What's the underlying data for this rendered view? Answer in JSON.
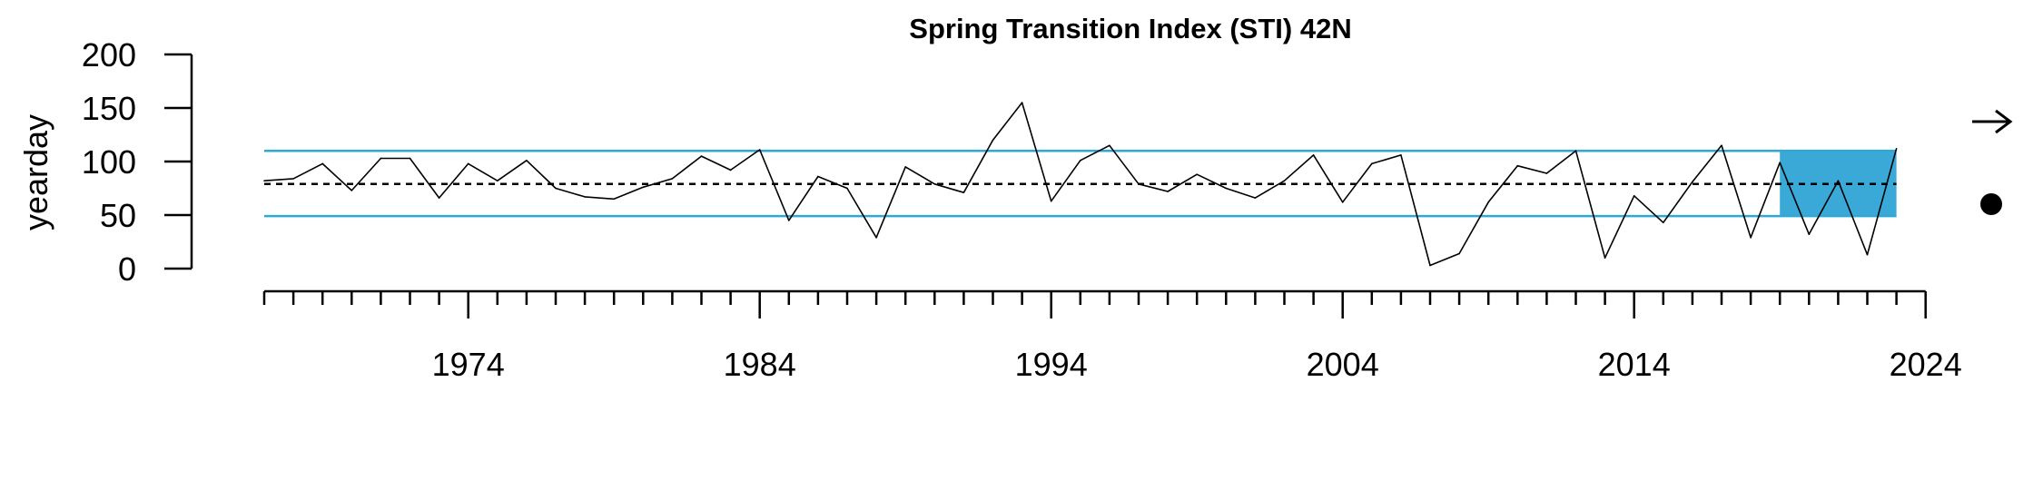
{
  "chart_data": {
    "type": "line",
    "title": "Spring Transition Index (STI) 42N",
    "xlabel": "",
    "ylabel": "yearday",
    "xlim": [
      1962,
      2024
    ],
    "ylim": [
      0,
      200
    ],
    "x_ticks_major": [
      "1974",
      "1984",
      "1994",
      "2004",
      "2014",
      "2024"
    ],
    "y_ticks": [
      "0",
      "50",
      "100",
      "150",
      "200"
    ],
    "x": [
      1967,
      1968,
      1969,
      1970,
      1971,
      1972,
      1973,
      1974,
      1975,
      1976,
      1977,
      1978,
      1979,
      1980,
      1981,
      1982,
      1983,
      1984,
      1985,
      1986,
      1987,
      1988,
      1989,
      1990,
      1991,
      1992,
      1993,
      1994,
      1995,
      1996,
      1997,
      1998,
      1999,
      2000,
      2001,
      2002,
      2003,
      2004,
      2005,
      2006,
      2007,
      2008,
      2009,
      2010,
      2011,
      2012,
      2013,
      2014,
      2015,
      2016,
      2017,
      2018,
      2019,
      2020,
      2021,
      2022,
      2023
    ],
    "series": [
      {
        "values": [
          82,
          84,
          98,
          73,
          103,
          103,
          66,
          98,
          82,
          101,
          75,
          67,
          65,
          76,
          84,
          105,
          92,
          111,
          45,
          86,
          75,
          29,
          95,
          79,
          71,
          120,
          155,
          63,
          101,
          115,
          79,
          72,
          88,
          75,
          66,
          82,
          106,
          62,
          98,
          106,
          3,
          14,
          62,
          96,
          89,
          110,
          10,
          68,
          43,
          81,
          115,
          29,
          99,
          32,
          82,
          13,
          112
        ]
      }
    ],
    "mean_line": 79,
    "band_lower": 49,
    "band_upper": 110,
    "highlight_x_range": [
      2019,
      2023
    ],
    "colors": {
      "series": "#000000",
      "band": "#2da9d6",
      "highlight": "#3aa9d8",
      "mean": "#000000"
    },
    "legend_symbols": [
      "right-arrow-icon",
      "filled-circle-icon"
    ]
  }
}
